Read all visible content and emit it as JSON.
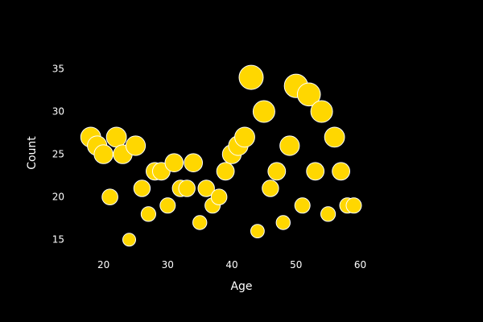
{
  "colors": {
    "background": "#000000",
    "marker": "#ffd700",
    "marker_outline": "#ffffff",
    "text": "#ffffff"
  },
  "chart_data": {
    "type": "scatter",
    "title": "",
    "xlabel": "Age",
    "ylabel": "Count",
    "xlim": [
      13.9,
      69.1
    ],
    "ylim": [
      12.9,
      37.4
    ],
    "xticks": [
      20,
      30,
      40,
      50,
      60
    ],
    "yticks": [
      15,
      20,
      25,
      30,
      35
    ],
    "grid": false,
    "legend": false,
    "marker_size_encodes": "y",
    "points": [
      {
        "x": 18,
        "y": 27
      },
      {
        "x": 19,
        "y": 26
      },
      {
        "x": 20,
        "y": 25
      },
      {
        "x": 21,
        "y": 20
      },
      {
        "x": 22,
        "y": 27
      },
      {
        "x": 23,
        "y": 25
      },
      {
        "x": 24,
        "y": 15
      },
      {
        "x": 25,
        "y": 26
      },
      {
        "x": 26,
        "y": 21
      },
      {
        "x": 27,
        "y": 18
      },
      {
        "x": 28,
        "y": 23
      },
      {
        "x": 29,
        "y": 23
      },
      {
        "x": 30,
        "y": 19
      },
      {
        "x": 31,
        "y": 24
      },
      {
        "x": 32,
        "y": 21
      },
      {
        "x": 33,
        "y": 21
      },
      {
        "x": 34,
        "y": 24
      },
      {
        "x": 35,
        "y": 17
      },
      {
        "x": 36,
        "y": 21
      },
      {
        "x": 37,
        "y": 19
      },
      {
        "x": 38,
        "y": 20
      },
      {
        "x": 39,
        "y": 23
      },
      {
        "x": 40,
        "y": 25
      },
      {
        "x": 41,
        "y": 26
      },
      {
        "x": 42,
        "y": 27
      },
      {
        "x": 43,
        "y": 34
      },
      {
        "x": 44,
        "y": 16
      },
      {
        "x": 45,
        "y": 30
      },
      {
        "x": 46,
        "y": 21
      },
      {
        "x": 47,
        "y": 23
      },
      {
        "x": 48,
        "y": 17
      },
      {
        "x": 49,
        "y": 26
      },
      {
        "x": 50,
        "y": 33
      },
      {
        "x": 51,
        "y": 19
      },
      {
        "x": 52,
        "y": 32
      },
      {
        "x": 53,
        "y": 23
      },
      {
        "x": 54,
        "y": 30
      },
      {
        "x": 55,
        "y": 18
      },
      {
        "x": 56,
        "y": 27
      },
      {
        "x": 57,
        "y": 23
      },
      {
        "x": 58,
        "y": 19
      },
      {
        "x": 59,
        "y": 19
      }
    ]
  }
}
